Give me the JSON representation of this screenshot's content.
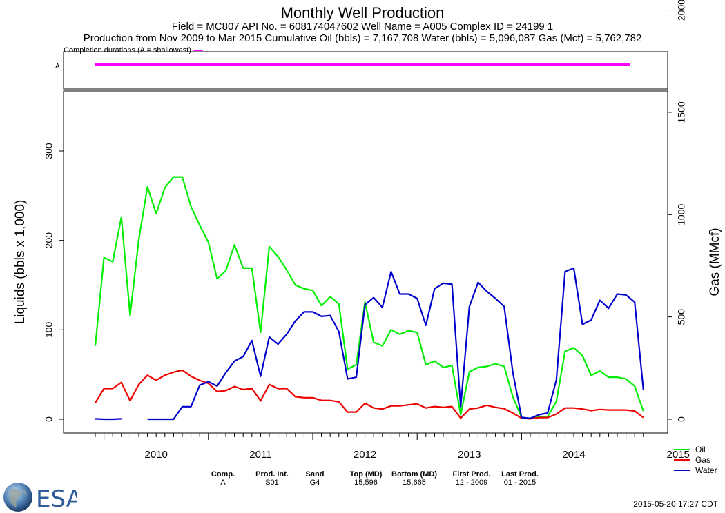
{
  "header": {
    "title": "Monthly Well Production",
    "line1": "Field = MC807  API No. = 608174047602  Well Name = A005  Complex ID = 24199   1",
    "line2": "Production from  Nov 2009 to Mar 2015   Cumulative Oil (bbls) =  7,167,708   Water (bbls) =  5,096,087   Gas (Mcf) =  5,762,782",
    "completion_note": "Completion durations (A = shallowest)",
    "completion_marker": "-----"
  },
  "completion": {
    "label": "A",
    "color": "#ff00ff"
  },
  "chart_data": {
    "type": "line",
    "x_start": "2009-12",
    "x_end": "2015-03",
    "xlabel": "",
    "x_ticks": [
      "2010",
      "2011",
      "2012",
      "2013",
      "2014",
      "2015"
    ],
    "ylabel": "Liquids (bbls x 1,000)",
    "ylim": [
      0,
      370
    ],
    "y_ticks": [
      "0",
      "100",
      "200",
      "300"
    ],
    "y2label": "Gas (MMcf)",
    "y2lim": [
      0,
      2150
    ],
    "y2_ticks": [
      "0",
      "500",
      "1000",
      "1500",
      "2000"
    ],
    "legend_position": "bottom-right",
    "series": [
      {
        "name": "Oil",
        "axis": "left",
        "color": "#00ee00",
        "values": [
          82,
          181,
          176,
          226,
          116,
          201,
          260,
          230,
          259,
          271,
          271,
          238,
          217,
          198,
          157,
          166,
          195,
          169,
          169,
          97,
          193,
          182,
          167,
          150,
          146,
          144,
          127,
          137,
          129,
          56,
          61,
          131,
          86,
          82,
          100,
          95,
          99,
          97,
          61,
          65,
          58,
          60,
          5,
          53,
          58,
          59,
          62,
          59,
          25,
          2,
          1,
          3,
          3,
          20,
          76,
          80,
          71,
          49,
          54,
          47,
          47,
          45,
          37,
          9
        ]
      },
      {
        "name": "Gas",
        "axis": "right",
        "color": "#ee0000",
        "values": [
          80,
          150,
          150,
          180,
          90,
          170,
          215,
          190,
          215,
          230,
          240,
          210,
          190,
          175,
          135,
          140,
          160,
          145,
          150,
          90,
          170,
          150,
          150,
          110,
          105,
          105,
          92,
          92,
          85,
          35,
          35,
          78,
          55,
          50,
          65,
          65,
          70,
          75,
          55,
          62,
          58,
          62,
          5,
          50,
          55,
          68,
          58,
          52,
          30,
          5,
          2,
          8,
          8,
          25,
          55,
          55,
          50,
          42,
          48,
          45,
          45,
          45,
          40,
          8
        ]
      },
      {
        "name": "Water",
        "axis": "left",
        "color": "#0000cc",
        "values": [
          0.5,
          0,
          0,
          0.5,
          null,
          null,
          0,
          0,
          0,
          0,
          14,
          14,
          38,
          42,
          37,
          52,
          65,
          70,
          88,
          48,
          92,
          84,
          95,
          110,
          120,
          120,
          115,
          116,
          98,
          45,
          47,
          128,
          136,
          125,
          165,
          140,
          140,
          135,
          105,
          146,
          152,
          151,
          14,
          126,
          153,
          143,
          135,
          126,
          52,
          2,
          1,
          5,
          7,
          44,
          165,
          169,
          106,
          111,
          133,
          124,
          140,
          139,
          131,
          33
        ]
      }
    ]
  },
  "bottom_table": {
    "comp": {
      "header": "Comp.",
      "value": "A"
    },
    "prod": {
      "header": "Prod. Int.",
      "value": "S01"
    },
    "sand": {
      "header": "Sand",
      "value": "G4"
    },
    "top": {
      "header": "Top (MD)",
      "value": "15,596"
    },
    "bottom": {
      "header": "Bottom (MD)",
      "value": "15,665"
    },
    "first": {
      "header": "First Prod.",
      "value": "12 - 2009"
    },
    "last": {
      "header": "Last Prod.",
      "value": "01 - 2015"
    }
  },
  "logo": {
    "text": "ESA"
  },
  "timestamp": "2015-05-20 17:27 CDT"
}
